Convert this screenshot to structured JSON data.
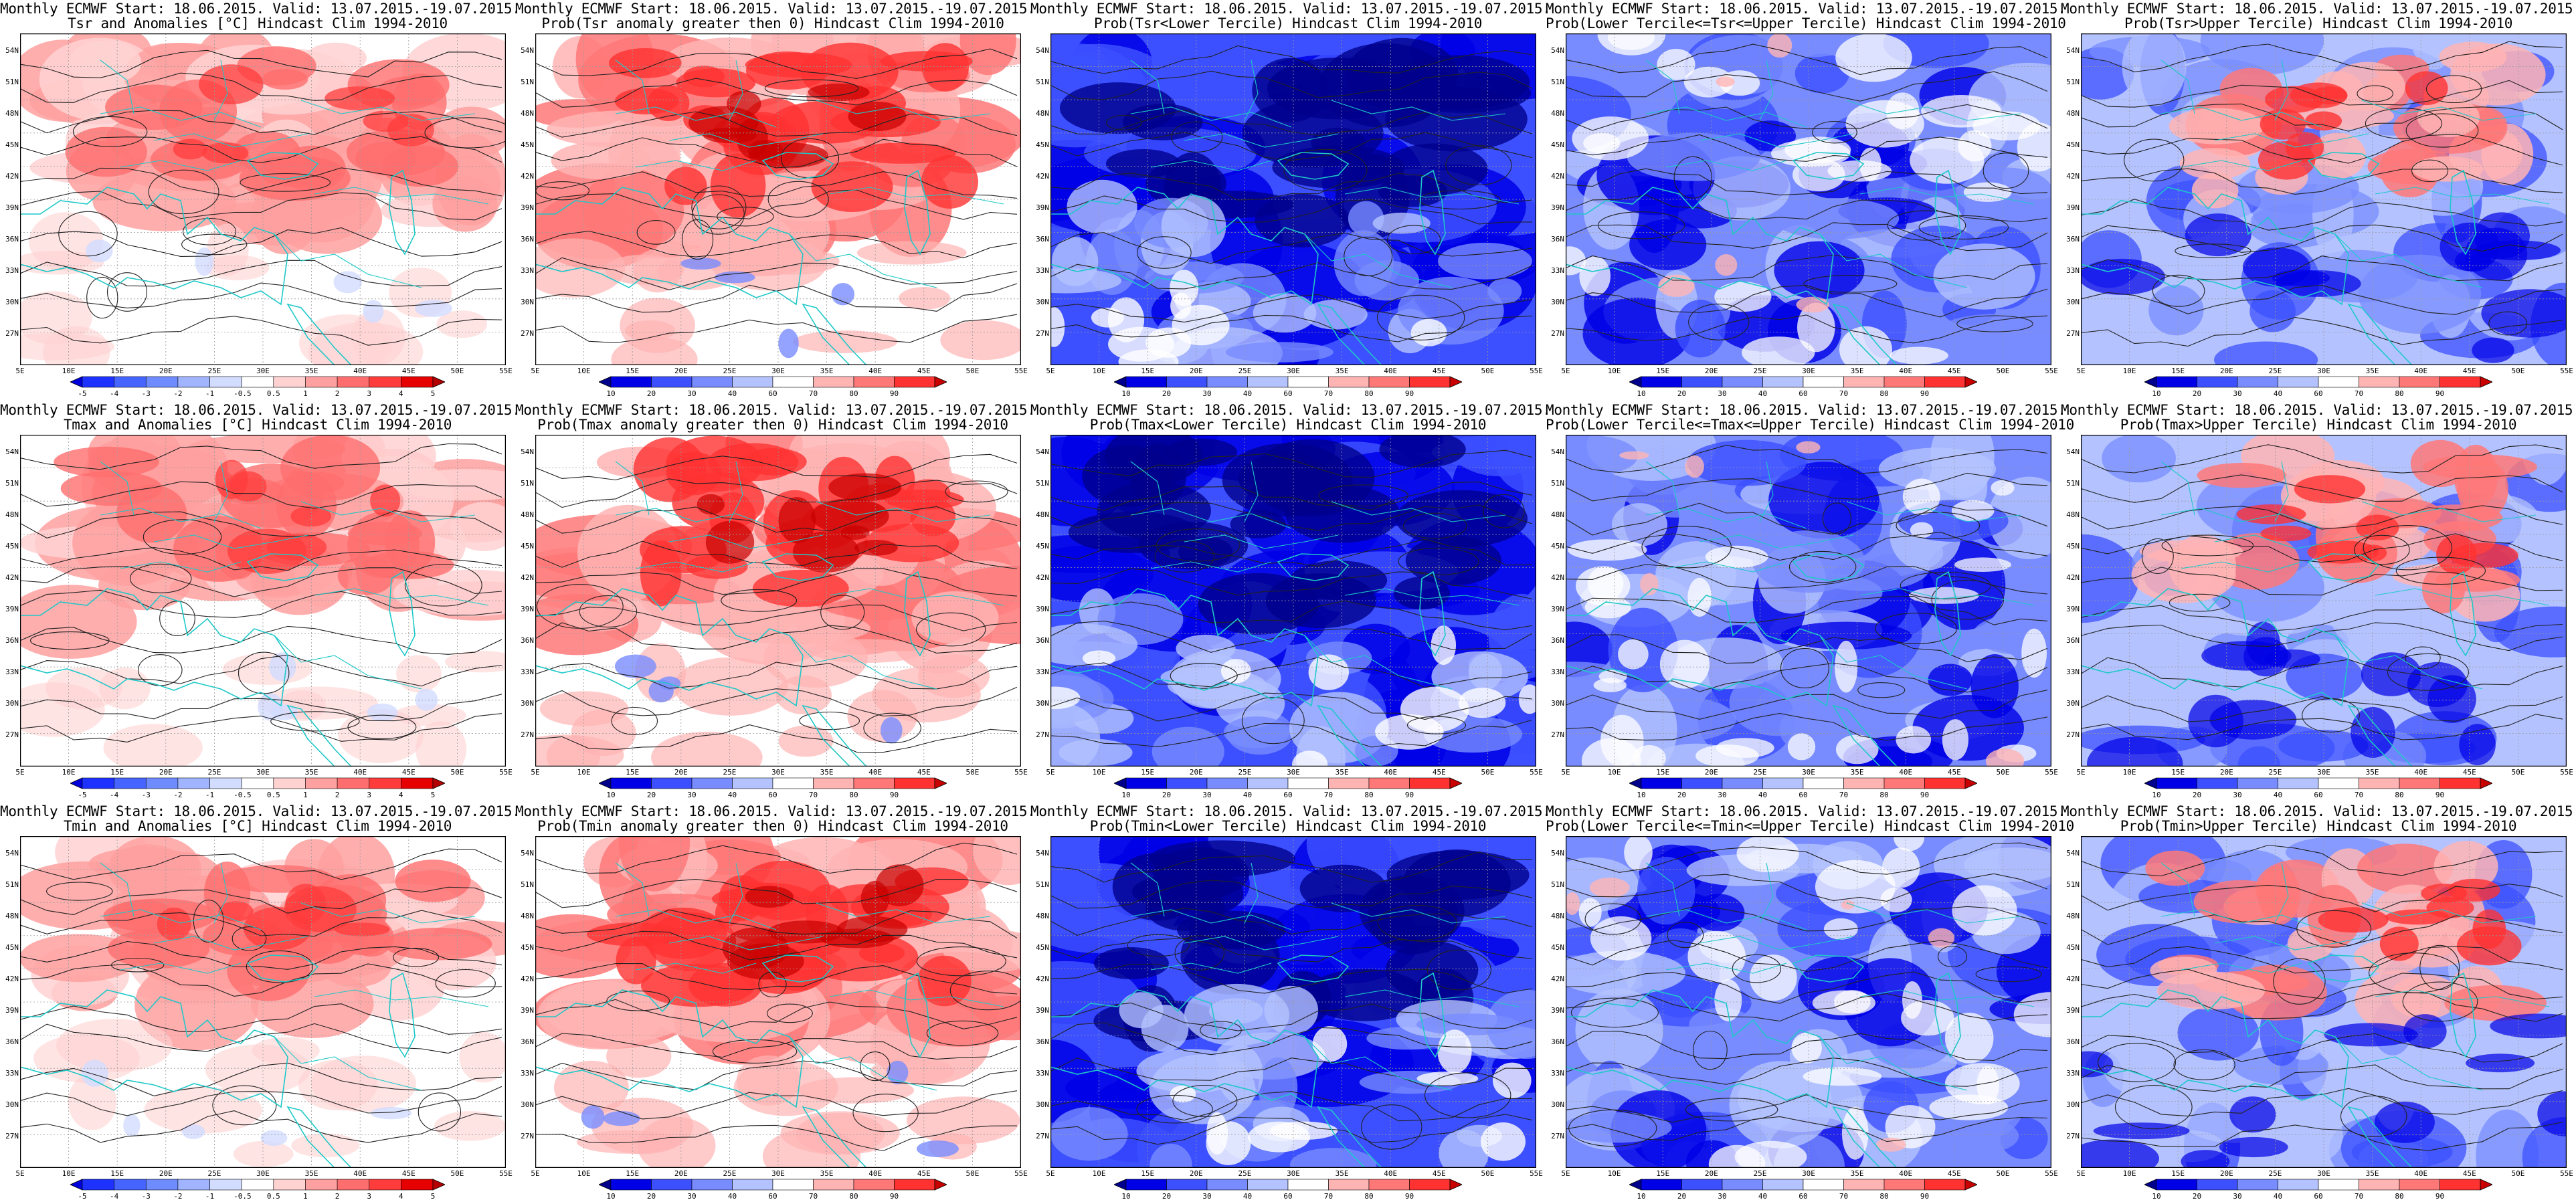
{
  "panels": [
    {
      "row": 0,
      "col": 0,
      "line1": "Monthly ECMWF Start: 18.06.2015. Valid: 13.07.2015.-19.07.2015.",
      "line2": "Tsr and Anomalies [°C] Hindcast Clim 1994-2010",
      "kind": "anom",
      "pattern": "warm_n",
      "scale": "anom"
    },
    {
      "row": 0,
      "col": 1,
      "line1": "Monthly ECMWF Start: 18.06.2015. Valid: 13.07.2015.-19.07.2015.",
      "line2": "Prob(Tsr anomaly greater then 0) Hindcast Clim 1994-2010",
      "kind": "prob_warm",
      "pattern": "warm_strong",
      "scale": "prob"
    },
    {
      "row": 0,
      "col": 2,
      "line1": "Monthly ECMWF Start: 18.06.2015. Valid: 13.07.2015.-19.07.2015.",
      "line2": "Prob(Tsr<Lower Tercile) Hindcast Clim 1994-2010",
      "kind": "prob_cold",
      "pattern": "blue_deep",
      "scale": "prob"
    },
    {
      "row": 0,
      "col": 3,
      "line1": "Monthly ECMWF Start: 18.06.2015. Valid: 13.07.2015.-19.07.2015.",
      "line2": "Prob(Lower Tercile<=Tsr<=Upper Tercile) Hindcast Clim 1994-2010",
      "kind": "prob_mid",
      "pattern": "blue_mix",
      "scale": "prob"
    },
    {
      "row": 0,
      "col": 4,
      "line1": "Monthly ECMWF Start: 18.06.2015. Valid: 13.07.2015.-19.07.2015.",
      "line2": "Prob(Tsr>Upper Tercile) Hindcast Clim 1994-2010",
      "kind": "prob_upper",
      "pattern": "mixed_rb",
      "scale": "prob"
    },
    {
      "row": 1,
      "col": 0,
      "line1": "Monthly ECMWF Start: 18.06.2015. Valid: 13.07.2015.-19.07.2015.",
      "line2": "Tmax and Anomalies [°C] Hindcast Clim 1994-2010",
      "kind": "anom",
      "pattern": "warm_n",
      "scale": "anom"
    },
    {
      "row": 1,
      "col": 1,
      "line1": "Monthly ECMWF Start: 18.06.2015. Valid: 13.07.2015.-19.07.2015.",
      "line2": "Prob(Tmax anomaly greater then 0) Hindcast Clim 1994-2010",
      "kind": "prob_warm",
      "pattern": "warm_strong",
      "scale": "prob"
    },
    {
      "row": 1,
      "col": 2,
      "line1": "Monthly ECMWF Start: 18.06.2015. Valid: 13.07.2015.-19.07.2015.",
      "line2": "Prob(Tmax<Lower Tercile) Hindcast Clim 1994-2010",
      "kind": "prob_cold",
      "pattern": "blue_deep",
      "scale": "prob"
    },
    {
      "row": 1,
      "col": 3,
      "line1": "Monthly ECMWF Start: 18.06.2015. Valid: 13.07.2015.-19.07.2015.",
      "line2": "Prob(Lower Tercile<=Tmax<=Upper Tercile) Hindcast Clim 1994-2010",
      "kind": "prob_mid",
      "pattern": "blue_mix",
      "scale": "prob"
    },
    {
      "row": 1,
      "col": 4,
      "line1": "Monthly ECMWF Start: 18.06.2015. Valid: 13.07.2015.-19.07.2015.",
      "line2": "Prob(Tmax>Upper Tercile) Hindcast Clim 1994-2010",
      "kind": "prob_upper",
      "pattern": "mixed_rb",
      "scale": "prob"
    },
    {
      "row": 2,
      "col": 0,
      "line1": "Monthly ECMWF Start: 18.06.2015. Valid: 13.07.2015.-19.07.2015.",
      "line2": "Tmin and Anomalies [°C] Hindcast Clim 1994-2010",
      "kind": "anom",
      "pattern": "warm_n",
      "scale": "anom"
    },
    {
      "row": 2,
      "col": 1,
      "line1": "Monthly ECMWF Start: 18.06.2015. Valid: 13.07.2015.-19.07.2015.",
      "line2": "Prob(Tmin anomaly greater then 0) Hindcast Clim 1994-2010",
      "kind": "prob_warm",
      "pattern": "warm_strong",
      "scale": "prob"
    },
    {
      "row": 2,
      "col": 2,
      "line1": "Monthly ECMWF Start: 18.06.2015. Valid: 13.07.2015.-19.07.2015.",
      "line2": "Prob(Tmin<Lower Tercile) Hindcast Clim 1994-2010",
      "kind": "prob_cold",
      "pattern": "blue_deep",
      "scale": "prob"
    },
    {
      "row": 2,
      "col": 3,
      "line1": "Monthly ECMWF Start: 18.06.2015. Valid: 13.07.2015.-19.07.2015.",
      "line2": "Prob(Lower Tercile<=Tmin<=Upper Tercile) Hindcast Clim 1994-2010",
      "kind": "prob_mid",
      "pattern": "blue_mix",
      "scale": "prob"
    },
    {
      "row": 2,
      "col": 4,
      "line1": "Monthly ECMWF Start: 18.06.2015. Valid: 13.07.2015.-19.07.2015.",
      "line2": "Prob(Tmin>Upper Tercile) Hindcast Clim 1994-2010",
      "kind": "prob_upper",
      "pattern": "mixed_rb",
      "scale": "prob"
    }
  ],
  "axes": {
    "lat_labels": [
      "54N",
      "51N",
      "48N",
      "45N",
      "42N",
      "39N",
      "36N",
      "33N",
      "30N",
      "27N"
    ],
    "lon_labels": [
      "5E",
      "10E",
      "15E",
      "20E",
      "25E",
      "30E",
      "35E",
      "40E",
      "45E",
      "50E",
      "55E"
    ],
    "lon_range": [
      5,
      55
    ],
    "lat_range": [
      25,
      55
    ]
  },
  "scales": {
    "anom": {
      "labels": [
        "-5",
        "-4",
        "-3",
        "-2",
        "-1",
        "-0.5",
        "0.5",
        "1",
        "2",
        "3",
        "4",
        "5"
      ],
      "colors": [
        "#0000dc",
        "#1e32ff",
        "#4664ff",
        "#6e8cff",
        "#a0b4ff",
        "#d2dcff",
        "#ffffff",
        "#ffd2d2",
        "#ffa0a0",
        "#ff6e6e",
        "#ff3c3c",
        "#e60000",
        "#b40000"
      ]
    },
    "prob": {
      "labels": [
        "10",
        "20",
        "30",
        "40",
        "60",
        "70",
        "80",
        "90"
      ],
      "colors": [
        "#00008c",
        "#0000e6",
        "#3c50ff",
        "#788cff",
        "#b4c3ff",
        "#ffffff",
        "#ffb4b4",
        "#ff7878",
        "#ff3232",
        "#c80000"
      ]
    }
  },
  "colors": {
    "coast": "#1ec8c8",
    "contour": "#222222",
    "grid": "#9a9a9a"
  }
}
